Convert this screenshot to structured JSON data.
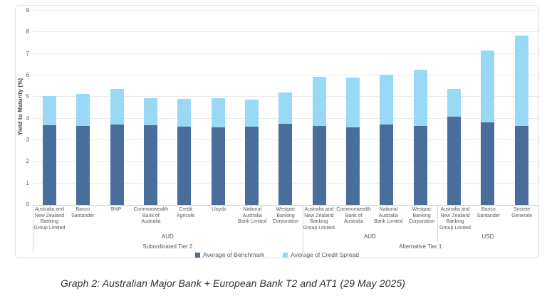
{
  "caption": "Graph 2: Australian Major Bank + European Bank T2 and AT1 (29 May 2025)",
  "chart_data": {
    "type": "bar",
    "stacked": true,
    "ylabel": "Yield to Maturity (%)",
    "ylim": [
      0,
      9
    ],
    "ytick_step": 1,
    "grid": true,
    "legend_position": "bottom",
    "categories": [
      "Australia and New Zealand Banking Group Limited",
      "Banco Santander",
      "BNP",
      "Commonwealth Bank of Australia",
      "Credit Agricole",
      "Lloyds",
      "National Australia Bank Limited",
      "Westpac Banking Corporation",
      "Australia and New Zealand Banking Group Limited",
      "Commonwealth Bank of Australia",
      "National Australia Bank Limited",
      "Westpac Banking Corporation",
      "Australia and New Zealand Banking Group Limited",
      "Banco Santander",
      "Societe Generale"
    ],
    "currency_groups": [
      {
        "label": "AUD",
        "count": 8
      },
      {
        "label": "AUD",
        "count": 4
      },
      {
        "label": "USD",
        "count": 3
      }
    ],
    "tier_groups": [
      {
        "label": "Subordinated Tier 2",
        "count": 8
      },
      {
        "label": "Alternative Tier 1",
        "count": 7
      }
    ],
    "series": [
      {
        "name": "Average of Benchmark",
        "color": "#4a6e9c",
        "values": [
          3.68,
          3.65,
          3.73,
          3.7,
          3.62,
          3.6,
          3.62,
          3.75,
          3.67,
          3.6,
          3.71,
          3.65,
          4.08,
          3.83,
          3.67
        ]
      },
      {
        "name": "Average of Credit Spread",
        "color": "#9ad9f6",
        "values": [
          1.35,
          1.51,
          1.65,
          1.24,
          1.29,
          1.33,
          1.27,
          1.45,
          2.25,
          2.29,
          2.31,
          2.61,
          1.29,
          3.34,
          4.18
        ]
      }
    ],
    "totals": [
      5.03,
      5.16,
      5.38,
      4.94,
      4.91,
      4.93,
      4.89,
      5.2,
      5.92,
      5.89,
      6.02,
      6.26,
      5.37,
      7.17,
      7.85
    ]
  }
}
